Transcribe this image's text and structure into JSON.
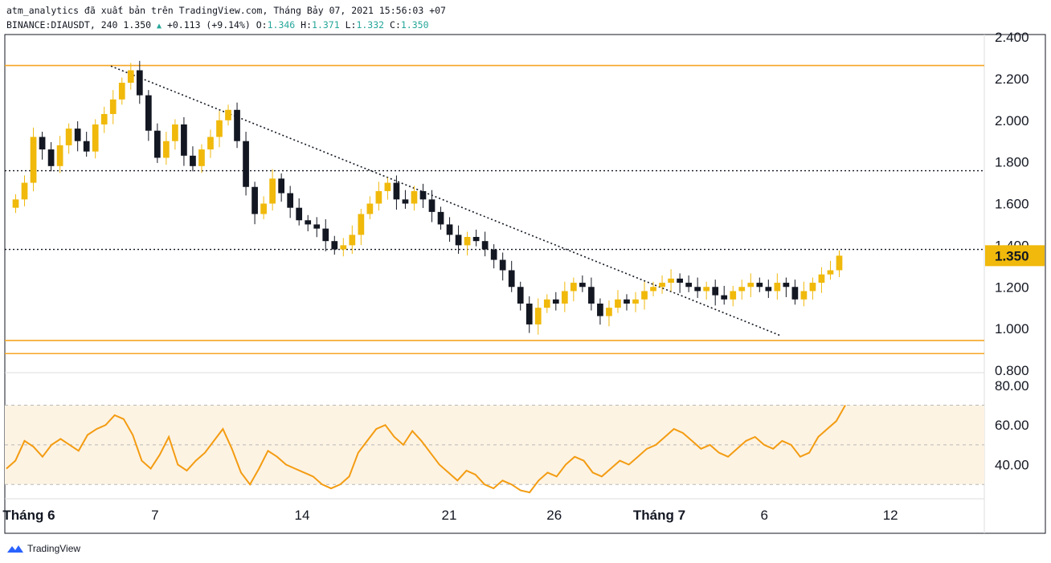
{
  "header": {
    "line1": "atm_analytics đã xuất bản trên TradingView.com, Tháng Bảy 07, 2021 15:56:03 +07",
    "symbol": "BINANCE:DIAUSDT, 240",
    "last": "1.350",
    "change": "+0.113 (+9.14%)",
    "o_label": "O:",
    "o_val": "1.346",
    "h_label": "H:",
    "h_val": "1.371",
    "l_label": "L:",
    "l_val": "1.332",
    "c_label": "C:",
    "c_val": "1.350"
  },
  "brand": {
    "label": "TradingView"
  },
  "colors": {
    "up": "#f0b90b",
    "down": "#131722",
    "rsi": "#f39c12",
    "level": "#f5a623",
    "price_badge": "#f0b90b"
  },
  "chart_data": [
    {
      "type": "candlestick",
      "symbol": "BINANCE:DIAUSDT",
      "interval": "240",
      "ylim": [
        0.8,
        2.4
      ],
      "y_ticks": [
        "2.400",
        "2.200",
        "2.000",
        "1.800",
        "1.600",
        "1.400",
        "1.200",
        "1.000",
        "0.800"
      ],
      "x_ticks": [
        {
          "label": "Tháng 6",
          "day": 0
        },
        {
          "label": "7",
          "day": 6
        },
        {
          "label": "14",
          "day": 13
        },
        {
          "label": "21",
          "day": 20
        },
        {
          "label": "26",
          "day": 25
        },
        {
          "label": "Tháng 7",
          "day": 30
        },
        {
          "label": "6",
          "day": 35
        },
        {
          "label": "12",
          "day": 41
        }
      ],
      "current_price": "1.350",
      "horizontal_levels": [
        {
          "value": 2.263,
          "style": "solid",
          "color": "#f5a623"
        },
        {
          "value": 1.758,
          "style": "dotted",
          "color": "#131722"
        },
        {
          "value": 1.38,
          "style": "dotted",
          "color": "#131722"
        },
        {
          "value": 0.943,
          "style": "solid",
          "color": "#f5a623"
        },
        {
          "value": 0.88,
          "style": "solid",
          "color": "#f5a623"
        }
      ],
      "trendline": {
        "from": {
          "day": 3.9,
          "value": 2.26
        },
        "to": {
          "day": 35.8,
          "value": 0.965
        },
        "style": "dotted"
      },
      "closes": [
        1.62,
        1.7,
        1.92,
        1.86,
        1.78,
        1.88,
        1.96,
        1.9,
        1.85,
        1.98,
        2.03,
        2.1,
        2.18,
        2.24,
        2.12,
        1.95,
        1.82,
        1.9,
        1.98,
        1.83,
        1.78,
        1.86,
        1.92,
        2.0,
        2.05,
        1.9,
        1.68,
        1.55,
        1.6,
        1.72,
        1.65,
        1.58,
        1.52,
        1.5,
        1.48,
        1.42,
        1.38,
        1.4,
        1.45,
        1.55,
        1.6,
        1.66,
        1.7,
        1.62,
        1.6,
        1.66,
        1.62,
        1.56,
        1.5,
        1.45,
        1.4,
        1.44,
        1.42,
        1.38,
        1.33,
        1.28,
        1.2,
        1.12,
        1.02,
        1.1,
        1.14,
        1.12,
        1.18,
        1.22,
        1.2,
        1.12,
        1.06,
        1.1,
        1.14,
        1.12,
        1.14,
        1.18,
        1.2,
        1.22,
        1.24,
        1.22,
        1.2,
        1.18,
        1.2,
        1.16,
        1.14,
        1.18,
        1.2,
        1.22,
        1.2,
        1.18,
        1.22,
        1.2,
        1.14,
        1.18,
        1.22,
        1.26,
        1.28,
        1.35
      ]
    },
    {
      "type": "line",
      "name": "",
      "ylim": [
        24,
        84
      ],
      "y_ticks": [
        "80.00",
        "60.00",
        "40.00"
      ],
      "band": [
        30,
        70
      ],
      "midline": 50,
      "values": [
        38,
        42,
        52,
        49,
        44,
        50,
        53,
        50,
        47,
        55,
        58,
        60,
        65,
        63,
        55,
        42,
        38,
        45,
        54,
        40,
        37,
        42,
        46,
        52,
        58,
        48,
        36,
        30,
        38,
        47,
        44,
        40,
        38,
        36,
        34,
        30,
        28,
        30,
        34,
        46,
        52,
        58,
        60,
        54,
        50,
        57,
        52,
        46,
        40,
        36,
        32,
        37,
        35,
        30,
        28,
        32,
        30,
        27,
        26,
        32,
        36,
        34,
        40,
        44,
        42,
        36,
        34,
        38,
        42,
        40,
        44,
        48,
        50,
        54,
        58,
        56,
        52,
        48,
        50,
        46,
        44,
        48,
        52,
        54,
        50,
        48,
        52,
        50,
        44,
        46,
        54,
        58,
        62,
        70
      ]
    }
  ]
}
